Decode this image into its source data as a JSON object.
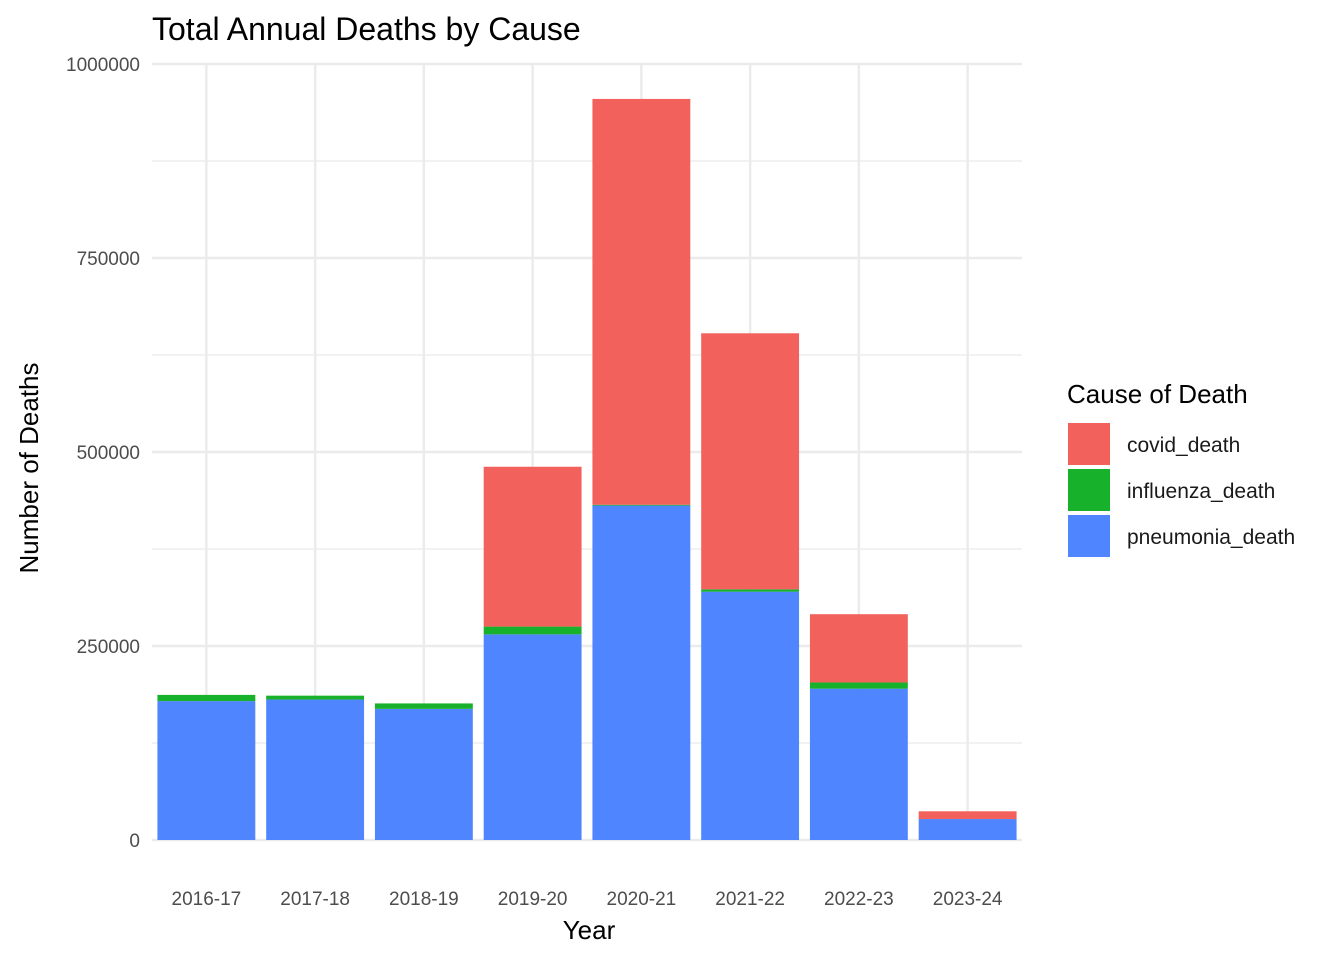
{
  "chart_data": {
    "type": "bar",
    "stacked": true,
    "title": "Total Annual Deaths by Cause",
    "xlabel": "Year",
    "ylabel": "Number of Deaths",
    "categories": [
      "2016-17",
      "2017-18",
      "2018-19",
      "2019-20",
      "2020-21",
      "2021-22",
      "2022-23",
      "2023-24"
    ],
    "ylim": [
      0,
      1000000
    ],
    "yticks": [
      0,
      250000,
      500000,
      750000,
      1000000
    ],
    "ytick_labels": [
      "0",
      "250000",
      "500000",
      "750000",
      "1000000"
    ],
    "grid": true,
    "legend_title": "Cause of Death",
    "legend_position": "right",
    "series": [
      {
        "name": "pneumonia_death",
        "color": "#4f86ff",
        "values": [
          179000,
          181000,
          169000,
          265000,
          431000,
          320000,
          195000,
          27000
        ]
      },
      {
        "name": "influenza_death",
        "color": "#17b12b",
        "values": [
          8000,
          5000,
          7000,
          10000,
          1000,
          3000,
          8000,
          0
        ]
      },
      {
        "name": "covid_death",
        "color": "#f2615b",
        "values": [
          0,
          0,
          0,
          206000,
          523000,
          330000,
          88000,
          10000
        ]
      }
    ]
  }
}
